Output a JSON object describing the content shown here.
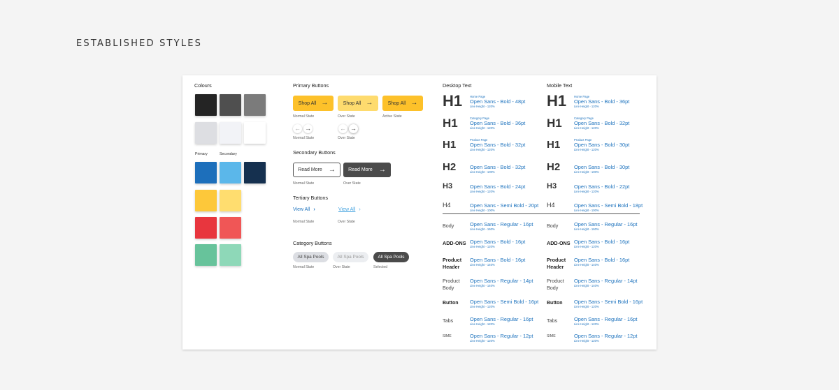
{
  "page_title": "ESTABLISHED STYLES",
  "colours": {
    "title": "Colours",
    "neutrals": [
      "#242424",
      "#4f4f4f",
      "#7b7b7b",
      "#dddee2",
      "#f2f3f7",
      "#ffffff"
    ],
    "primary_label": "Primary",
    "secondary_label": "Secondary",
    "brand": [
      "#1d6fbb",
      "#5bb7ea",
      "#15304f"
    ],
    "yellow": [
      "#fdc83a",
      "#ffdd6f"
    ],
    "red": [
      "#e8363e",
      "#f05656"
    ],
    "green": [
      "#67c39b",
      "#8ed8b8"
    ]
  },
  "primary_buttons": {
    "title": "Primary Buttons",
    "label": "Shop All",
    "states": [
      "Normal State",
      "Over State",
      "Active State"
    ],
    "colors": [
      "#fdc12a",
      "#fedb6e",
      "#fdc12a"
    ],
    "nav_states": [
      "Normal State",
      "Over State"
    ]
  },
  "secondary_buttons": {
    "title": "Secondary Buttons",
    "label": "Read More",
    "states": [
      "Normal State",
      "Over State"
    ]
  },
  "tertiary_buttons": {
    "title": "Tertiary Buttons",
    "label": "View All",
    "states": [
      "Normal State",
      "Over State"
    ]
  },
  "category_buttons": {
    "title": "Category Buttons",
    "label": "All Spa Pools",
    "states": [
      "Normal State",
      "Over State",
      "Selected"
    ]
  },
  "desktop_text": {
    "title": "Desktop Text",
    "headings": [
      {
        "label": "H1",
        "tiny": "Home Page",
        "spec": "Open Sans - Bold - 48pt",
        "lh": "Line Height - 120%"
      },
      {
        "label": "H1",
        "tiny": "Category Page",
        "spec": "Open Sans - Bold - 36pt",
        "lh": "Line Height - 120%"
      },
      {
        "label": "H1",
        "tiny": "Product Page",
        "spec": "Open Sans - Bold - 32pt",
        "lh": "Line Height - 120%"
      },
      {
        "label": "H2",
        "tiny": "",
        "spec": "Open Sans - Bold - 32pt",
        "lh": "Line Height - 100%"
      },
      {
        "label": "H3",
        "tiny": "",
        "spec": "Open Sans - Bold - 24pt",
        "lh": "Line Height - 120%"
      },
      {
        "label": "H4",
        "tiny": "",
        "spec": "Open Sans - Semi Bold - 20pt",
        "lh": "Line Height - 100%"
      }
    ],
    "body": [
      {
        "label": "Body",
        "spec": "Open Sans - Regular - 16pt",
        "lh": "Line Height - 160%"
      },
      {
        "label": "ADD-ONS",
        "spec": "Open Sans - Bold - 16pt",
        "lh": "Line Height - 120%"
      },
      {
        "label": "Product Header",
        "spec": "Open Sans - Bold - 16pt",
        "lh": "Line Height - 140%"
      },
      {
        "label": "Product Body",
        "spec": "Open Sans - Regular - 14pt",
        "lh": "Line Height - 140%"
      },
      {
        "label": "Button",
        "spec": "Open Sans - Semi Bold - 16pt",
        "lh": "Line Height - 120%"
      },
      {
        "label": "Tabs",
        "spec": "Open Sans - Regular - 16pt",
        "lh": "Line Height - 120%"
      },
      {
        "label": "SIME",
        "spec": "Open Sans - Regular - 12pt",
        "lh": "Line Height - 120%"
      }
    ]
  },
  "mobile_text": {
    "title": "Mobile Text",
    "headings": [
      {
        "label": "H1",
        "tiny": "Home Page",
        "spec": "Open Sans - Bold - 36pt",
        "lh": "Line Height - 120%"
      },
      {
        "label": "H1",
        "tiny": "Category Page",
        "spec": "Open Sans - Bold - 32pt",
        "lh": "Line Height - 120%"
      },
      {
        "label": "H1",
        "tiny": "Product Page",
        "spec": "Open Sans - Bold - 30pt",
        "lh": "Line Height - 120%"
      },
      {
        "label": "H2",
        "tiny": "",
        "spec": "Open Sans - Bold - 30pt",
        "lh": "Line Height - 100%"
      },
      {
        "label": "H3",
        "tiny": "",
        "spec": "Open Sans - Bold - 22pt",
        "lh": "Line Height - 120%"
      },
      {
        "label": "H4",
        "tiny": "",
        "spec": "Open Sans - Semi Bold - 18pt",
        "lh": "Line Height - 100%"
      }
    ],
    "body": [
      {
        "label": "Body",
        "spec": "Open Sans - Regular - 16pt",
        "lh": "Line Height - 160%"
      },
      {
        "label": "ADD-ONS",
        "spec": "Open Sans - Bold - 16pt",
        "lh": "Line Height - 120%"
      },
      {
        "label": "Product Header",
        "spec": "Open Sans - Bold - 16pt",
        "lh": "Line Height - 140%"
      },
      {
        "label": "Product Body",
        "spec": "Open Sans - Regular - 14pt",
        "lh": "Line Height - 140%"
      },
      {
        "label": "Button",
        "spec": "Open Sans - Semi Bold - 16pt",
        "lh": "Line Height - 120%"
      },
      {
        "label": "Tabs",
        "spec": "Open Sans - Regular - 16pt",
        "lh": "Line Height - 120%"
      },
      {
        "label": "SIME",
        "spec": "Open Sans - Regular - 12pt",
        "lh": "Line Height - 120%"
      }
    ]
  },
  "icons": {
    "arrow_right": "arrow-right-icon",
    "arrow_left": "arrow-left-icon",
    "chevron_right": "chevron-right-icon"
  }
}
